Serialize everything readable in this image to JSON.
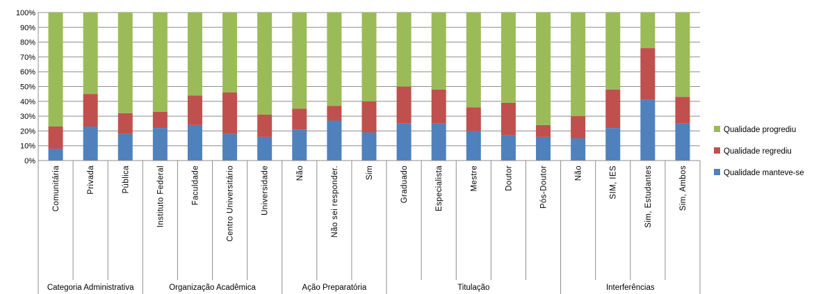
{
  "chart_data": {
    "type": "bar",
    "stacked": true,
    "percent_stacked": true,
    "title": "",
    "xlabel": "",
    "ylabel": "",
    "ylim": [
      0,
      100
    ],
    "y_ticks": [
      "0%",
      "10%",
      "20%",
      "30%",
      "40%",
      "50%",
      "60%",
      "70%",
      "80%",
      "90%",
      "100%"
    ],
    "grid": true,
    "legend_position": "right",
    "categories": [
      "Comunitária",
      "Privada",
      "Pública",
      "Instituto Federal",
      "Faculdade",
      "Centro Universitário",
      "Universidade",
      "Não",
      "Não sei responder.",
      "Sim",
      "Graduado",
      "Especialista",
      "Mestre",
      "Doutor",
      "Pós-Doutor",
      "Não",
      "SIM, IES",
      "Sim, Estudantes",
      "Sim, Ambos"
    ],
    "groups": [
      {
        "label": "Categoria Administrativa",
        "count": 3
      },
      {
        "label": "Organização Acadêmica",
        "count": 4
      },
      {
        "label": "Ação Preparatória",
        "count": 3
      },
      {
        "label": "Titulação",
        "count": 5
      },
      {
        "label": "Interferências",
        "count": 4
      }
    ],
    "series": [
      {
        "name": "Qualidade manteve-se",
        "color": "#4f81bd",
        "values": [
          8,
          23,
          18,
          22,
          24,
          18,
          16,
          21,
          27,
          19,
          25,
          25,
          20,
          17,
          16,
          15,
          22,
          41,
          25
        ]
      },
      {
        "name": "Qualidade regrediu",
        "color": "#c0504d",
        "values": [
          15,
          22,
          14,
          11,
          20,
          28,
          15,
          14,
          10,
          21,
          25,
          23,
          16,
          22,
          8,
          15,
          26,
          35,
          18
        ]
      },
      {
        "name": "Qualidade progrediu",
        "color": "#9bbb59",
        "values": [
          77,
          55,
          68,
          67,
          56,
          54,
          69,
          65,
          63,
          60,
          50,
          52,
          64,
          61,
          76,
          70,
          52,
          24,
          57
        ]
      }
    ],
    "legend_order": [
      "Qualidade progrediu",
      "Qualidade regrediu",
      "Qualidade manteve-se"
    ]
  }
}
